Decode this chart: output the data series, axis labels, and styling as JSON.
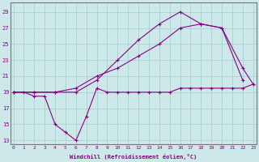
{
  "title": "",
  "xlabel": "Windchill (Refroidissement éolien,°C)",
  "ylabel": "",
  "bg_color": "#cde8e8",
  "grid_color": "#aed4d4",
  "line_color": "#880088",
  "xlim": [
    -0.3,
    23.3
  ],
  "ylim": [
    12.5,
    30.2
  ],
  "xticks": [
    0,
    1,
    2,
    3,
    4,
    5,
    6,
    7,
    8,
    9,
    10,
    11,
    12,
    13,
    14,
    15,
    16,
    17,
    18,
    19,
    20,
    21,
    22,
    23
  ],
  "yticks": [
    13,
    15,
    17,
    19,
    21,
    23,
    25,
    27,
    29
  ],
  "line1_x": [
    0,
    1,
    2,
    3,
    4,
    5,
    6,
    7,
    8,
    9,
    10,
    11,
    12,
    13,
    14,
    15,
    16,
    17,
    18,
    19,
    20,
    21,
    22,
    23
  ],
  "line1_y": [
    19.0,
    19.0,
    18.5,
    18.5,
    15.0,
    14.0,
    13.0,
    16.0,
    19.5,
    19.0,
    19.0,
    19.0,
    19.0,
    19.0,
    19.0,
    19.0,
    19.5,
    19.5,
    19.5,
    19.5,
    19.5,
    19.5,
    19.5,
    20.0
  ],
  "line2_x": [
    0,
    2,
    4,
    6,
    8,
    10,
    12,
    14,
    16,
    18,
    20,
    22
  ],
  "line2_y": [
    19.0,
    19.0,
    19.0,
    19.0,
    20.5,
    23.0,
    25.5,
    27.5,
    29.0,
    27.5,
    27.0,
    20.5
  ],
  "line3_x": [
    0,
    2,
    4,
    6,
    8,
    10,
    12,
    14,
    16,
    18,
    20,
    22,
    23
  ],
  "line3_y": [
    19.0,
    19.0,
    19.0,
    19.5,
    21.0,
    22.0,
    23.5,
    25.0,
    27.0,
    27.5,
    27.0,
    22.0,
    20.0
  ]
}
